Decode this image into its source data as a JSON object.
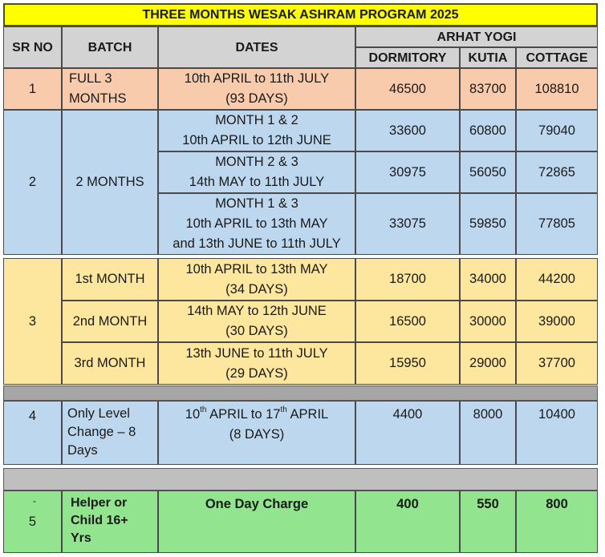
{
  "title": "THREE MONTHS WESAK ASHRAM PROGRAM 2025",
  "headers": {
    "sr_no": "SR NO",
    "batch": "BATCH",
    "dates": "DATES",
    "group": "ARHAT YOGI",
    "dormitory": "DORMITORY",
    "kutia": "KUTIA",
    "cottage": "COTTAGE"
  },
  "rows": {
    "r1": {
      "sr": "1",
      "batch": [
        "FULL 3",
        "MONTHS"
      ],
      "dates": [
        "10th APRIL to 11th JULY",
        "(93 DAYS)"
      ],
      "dormitory": "46500",
      "kutia": "83700",
      "cottage": "108810"
    },
    "r2": {
      "sr": "2",
      "batch": "2 MONTHS",
      "sub": [
        {
          "dates": [
            "MONTH 1 & 2",
            "10th APRIL to 12th JUNE"
          ],
          "dormitory": "33600",
          "kutia": "60800",
          "cottage": "79040"
        },
        {
          "dates": [
            "MONTH 2 & 3",
            "14th MAY to 11th JULY"
          ],
          "dormitory": "30975",
          "kutia": "56050",
          "cottage": "72865"
        },
        {
          "dates": [
            "MONTH 1 & 3",
            "10th APRIL to 13th MAY",
            "and 13th JUNE to 11th JULY"
          ],
          "dormitory": "33075",
          "kutia": "59850",
          "cottage": "77805"
        }
      ]
    },
    "r3": {
      "sr": "3",
      "sub": [
        {
          "batch": "1st MONTH",
          "dates": [
            "10th APRIL to 13th MAY",
            "(34 DAYS)"
          ],
          "dormitory": "18700",
          "kutia": "34000",
          "cottage": "44200"
        },
        {
          "batch": "2nd MONTH",
          "dates": [
            "14th MAY to 12th JUNE",
            "(30 DAYS)"
          ],
          "dormitory": "16500",
          "kutia": "30000",
          "cottage": "39000"
        },
        {
          "batch": "3rd MONTH",
          "dates": [
            "13th JUNE to 11th JULY",
            "(29 DAYS)"
          ],
          "dormitory": "15950",
          "kutia": "29000",
          "cottage": "37700"
        }
      ]
    },
    "r4": {
      "sr": "4",
      "batch": [
        "Only Level",
        "Change – 8",
        "Days"
      ],
      "dates_a_day": "10",
      "dates_a_sup": "th",
      "dates_a_mid": " APRIL to 17",
      "dates_a_sup2": "th",
      "dates_a_end": " APRIL",
      "dates_b": "(8 DAYS)",
      "dormitory": "4400",
      "kutia": "8000",
      "cottage": "10400"
    },
    "r5": {
      "sr": "5",
      "sr_mark": "-",
      "batch": [
        "Helper or",
        "Child 16+",
        "Yrs"
      ],
      "dates": "One Day Charge",
      "dormitory": "400",
      "kutia": "550",
      "cottage": "800"
    }
  }
}
